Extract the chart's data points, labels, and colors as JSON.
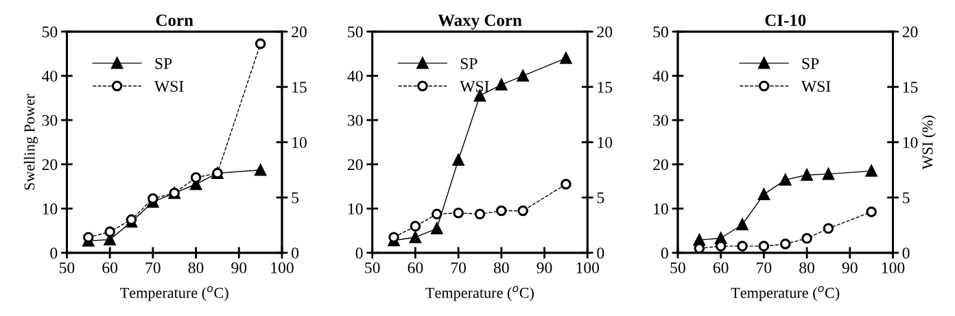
{
  "chart_data": [
    {
      "type": "line",
      "title": "Corn",
      "xlabel": "Temperature ($^{o}$C)",
      "ylabel": "Swelling Power",
      "x": [
        55,
        60,
        65,
        70,
        75,
        80,
        85,
        95
      ],
      "xlim": [
        50,
        100
      ],
      "xticks": [
        50,
        60,
        70,
        80,
        90,
        100
      ],
      "ylim": [
        0,
        50
      ],
      "yticks": [
        0,
        10,
        20,
        30,
        40,
        50
      ],
      "y2lim": [
        0,
        20
      ],
      "y2ticks": [
        0,
        5,
        10,
        15,
        20
      ],
      "legend": "top left",
      "grid": false,
      "series": [
        {
          "name": "SP",
          "color": "#000000",
          "marker": "triangle",
          "line_style": "solid",
          "values": [
            2.7,
            3,
            7,
            11.5,
            13.5,
            15.5,
            18,
            18.7
          ]
        },
        {
          "name": "WSI",
          "color": "#000000",
          "marker": "circle",
          "line_style": "dashed",
          "axis": "y2",
          "values": [
            1.4,
            1.9,
            3.0,
            4.9,
            5.4,
            6.8,
            7.2,
            18.9
          ]
        }
      ]
    },
    {
      "type": "line",
      "title": "Waxy Corn",
      "xlabel": "Temperature ($^{o}$C)",
      "x": [
        55,
        60,
        65,
        70,
        75,
        80,
        85,
        95
      ],
      "xlim": [
        50,
        100
      ],
      "xticks": [
        50,
        60,
        70,
        80,
        90,
        100
      ],
      "ylim": [
        0,
        50
      ],
      "yticks": [
        0,
        10,
        20,
        30,
        40,
        50
      ],
      "y2lim": [
        0,
        20
      ],
      "y2ticks": [
        0,
        5,
        10,
        15,
        20
      ],
      "legend": "top left",
      "grid": false,
      "series": [
        {
          "name": "SP",
          "color": "#000000",
          "marker": "triangle",
          "line_style": "solid",
          "values": [
            2.8,
            3.5,
            5.5,
            21,
            35.5,
            38,
            40,
            44
          ]
        },
        {
          "name": "WSI",
          "color": "#000000",
          "marker": "circle",
          "line_style": "dashed",
          "axis": "y2",
          "values": [
            1.4,
            2.4,
            3.5,
            3.6,
            3.5,
            3.8,
            3.8,
            6.2
          ]
        }
      ]
    },
    {
      "type": "line",
      "title": "CI-10",
      "xlabel": "Temperature ($^{o}$C)",
      "y2label": "WSI (%)",
      "x": [
        55,
        60,
        65,
        70,
        75,
        80,
        85,
        95
      ],
      "xlim": [
        50,
        100
      ],
      "xticks": [
        50,
        60,
        70,
        80,
        90,
        100
      ],
      "ylim": [
        0,
        50
      ],
      "yticks": [
        0,
        10,
        20,
        30,
        40,
        50
      ],
      "y2lim": [
        0,
        20
      ],
      "y2ticks": [
        0,
        5,
        10,
        15,
        20
      ],
      "legend": "top",
      "grid": false,
      "series": [
        {
          "name": "SP",
          "color": "#000000",
          "marker": "triangle",
          "line_style": "solid",
          "values": [
            2.9,
            3.3,
            6.4,
            13.2,
            16.5,
            17.6,
            17.8,
            18.5
          ]
        },
        {
          "name": "WSI",
          "color": "#000000",
          "marker": "circle",
          "line_style": "dashed",
          "axis": "y2",
          "values": [
            0.4,
            0.6,
            0.6,
            0.6,
            0.8,
            1.3,
            2.2,
            3.7
          ]
        }
      ]
    }
  ]
}
